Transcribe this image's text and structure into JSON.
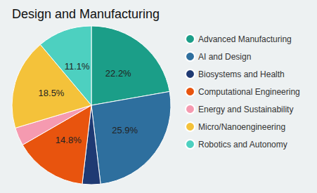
{
  "chart_data": {
    "type": "pie",
    "title": "Design and Manufacturing",
    "categories": [
      "Advanced Manufacturing",
      "AI and Design",
      "Biosystems and Health",
      "Computational Engineering",
      "Energy and Sustainability",
      "Micro/Nanoengineering",
      "Robotics and Autonomy"
    ],
    "values": [
      22.2,
      25.9,
      3.7,
      14.8,
      3.7,
      18.5,
      11.1
    ],
    "value_labels": [
      "22.2%",
      "25.9%",
      null,
      "14.8%",
      null,
      "18.5%",
      "11.1%"
    ],
    "colors": [
      "#1b9e88",
      "#2e6f9e",
      "#1f3a73",
      "#e8540e",
      "#f59ab0",
      "#f4c23a",
      "#4dd0c0"
    ],
    "legend": "right"
  }
}
